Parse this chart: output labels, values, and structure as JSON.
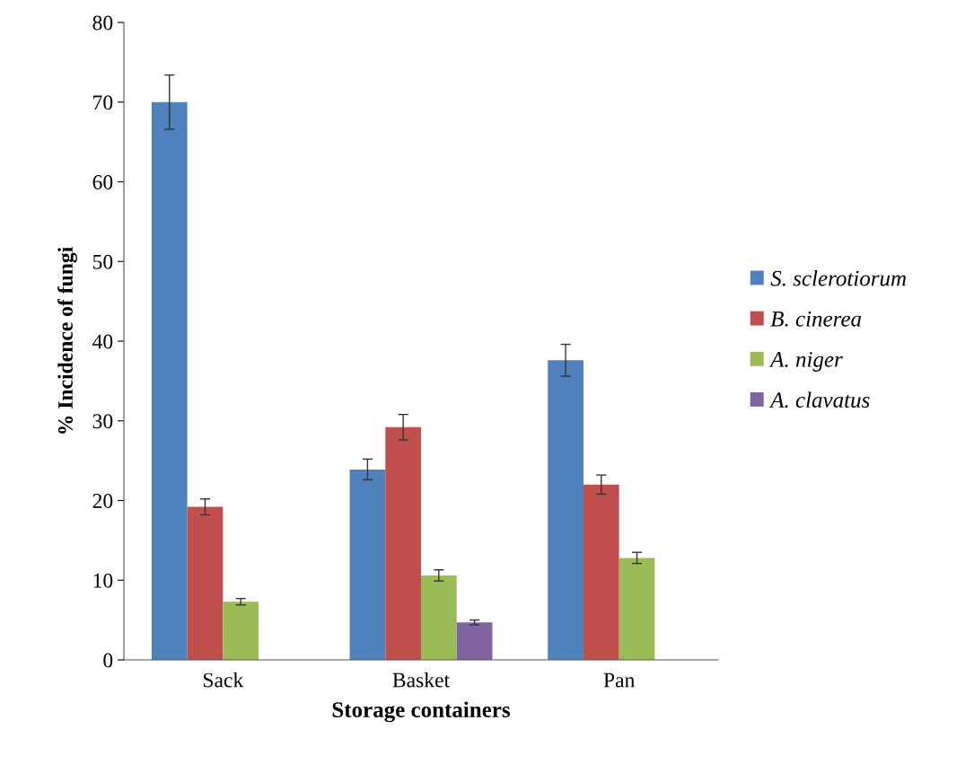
{
  "chart_data": {
    "type": "bar",
    "xlabel": "Storage containers",
    "ylabel": "% Incidence of fungi",
    "categories": [
      "Sack",
      "Basket",
      "Pan"
    ],
    "series": [
      {
        "name": "S. sclerotiorum",
        "color": "#4f81bd",
        "values": [
          70.0,
          23.9,
          37.6
        ],
        "errors": [
          3.4,
          1.3,
          2.0
        ]
      },
      {
        "name": "B. cinerea",
        "color": "#c0504d",
        "values": [
          19.2,
          29.2,
          22.0
        ],
        "errors": [
          1.0,
          1.6,
          1.2
        ]
      },
      {
        "name": "A. niger",
        "color": "#9bbb59",
        "values": [
          7.3,
          10.6,
          12.8
        ],
        "errors": [
          0.4,
          0.7,
          0.7
        ]
      },
      {
        "name": "A. clavatus",
        "color": "#8064a2",
        "values": [
          null,
          4.7,
          null
        ],
        "errors": [
          null,
          0.3,
          null
        ]
      }
    ],
    "ylim": [
      0,
      80
    ],
    "yticks": [
      0,
      10,
      20,
      30,
      40,
      50,
      60,
      70,
      80
    ],
    "grid": false,
    "legend": "right"
  }
}
